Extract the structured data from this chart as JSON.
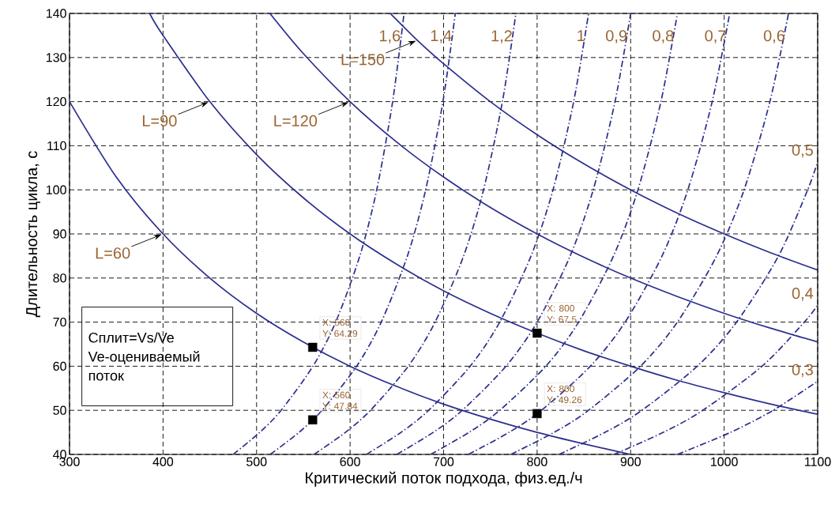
{
  "chart_data": {
    "type": "line",
    "xlabel": "Критический поток подхода, физ.ед./ч",
    "ylabel": "Длительность цикла, с",
    "xlim": [
      300,
      1100
    ],
    "ylim": [
      40,
      140
    ],
    "xticks": [
      300,
      400,
      500,
      600,
      700,
      800,
      900,
      1000,
      1100
    ],
    "yticks": [
      40,
      50,
      60,
      70,
      80,
      90,
      100,
      110,
      120,
      130,
      140
    ],
    "grid": true,
    "marker": "none",
    "annotations": [
      "Сплит=Vs/Ve",
      "Ve-оцениваемый поток"
    ],
    "series": [
      {
        "name": "L=60",
        "color": "#2b2f8c",
        "line_style": "solid",
        "x": [
          300,
          350,
          400,
          450,
          500,
          550,
          600,
          650,
          700,
          750,
          800,
          850,
          900
        ],
        "values": [
          120,
          102.9,
          90,
          80,
          72,
          65.5,
          60,
          55.4,
          51.4,
          48,
          45,
          42.4,
          40
        ]
      },
      {
        "name": "L=90",
        "color": "#2b2f8c",
        "line_style": "solid",
        "x": [
          385.7,
          400,
          450,
          500,
          550,
          600,
          650,
          700,
          750,
          800,
          850,
          900,
          950,
          1000,
          1050,
          1100
        ],
        "values": [
          140,
          135,
          120,
          108,
          98.2,
          90,
          83.1,
          77.1,
          72,
          67.5,
          63.5,
          60,
          56.8,
          54,
          51.4,
          49.1
        ]
      },
      {
        "name": "L=120",
        "color": "#2b2f8c",
        "line_style": "solid",
        "x": [
          514.3,
          550,
          600,
          650,
          700,
          750,
          800,
          850,
          900,
          950,
          1000,
          1050,
          1100
        ],
        "values": [
          140,
          130.9,
          120,
          110.8,
          102.9,
          96,
          90,
          84.7,
          80,
          75.8,
          72,
          68.6,
          65.5
        ]
      },
      {
        "name": "L=150",
        "color": "#2b2f8c",
        "line_style": "solid",
        "x": [
          642.9,
          650,
          672,
          700,
          750,
          800,
          850,
          900,
          950,
          1000,
          1050,
          1100
        ],
        "values": [
          140,
          138.5,
          133.9,
          128.6,
          120,
          112.5,
          105.9,
          100,
          94.7,
          90,
          85.7,
          81.8
        ]
      },
      {
        "name": "1,6",
        "color": "#2b2f8c",
        "line_style": "dashdot",
        "x": [
          475.0,
          503.4,
          526.2,
          560.3,
          584.6,
          610.4,
          628.5,
          645.5,
          657.7
        ],
        "values": [
          40,
          45,
          50,
          60,
          70,
          85,
          100,
          120,
          140
        ]
      },
      {
        "name": "1,4",
        "color": "#2b2f8c",
        "line_style": "dashdot",
        "x": [
          514.6,
          545.4,
          570.0,
          607.0,
          633.3,
          661.3,
          680.8,
          699.3,
          712.5
        ],
        "values": [
          40,
          45,
          50,
          60,
          70,
          85,
          100,
          120,
          140
        ]
      },
      {
        "name": "1,2",
        "color": "#2b2f8c",
        "line_style": "dashdot",
        "x": [
          561.4,
          595.0,
          621.8,
          662.2,
          690.9,
          721.4,
          742.7,
          762.9,
          777.3
        ],
        "values": [
          40,
          45,
          50,
          60,
          70,
          85,
          100,
          120,
          140
        ]
      },
      {
        "name": "1",
        "color": "#2b2f8c",
        "line_style": "dashdot",
        "x": [
          617.5,
          654.5,
          684.0,
          728.4,
          760.0,
          793.5,
          817.0,
          839.1,
          855.0
        ],
        "values": [
          40,
          45,
          50,
          60,
          70,
          85,
          100,
          120,
          140
        ]
      },
      {
        "name": "0,9",
        "color": "#2b2f8c",
        "line_style": "dashdot",
        "x": [
          650.0,
          688.9,
          720.0,
          766.7,
          800.0,
          835.3,
          860.0,
          883.3,
          900.0
        ],
        "values": [
          40,
          45,
          50,
          60,
          70,
          85,
          100,
          120,
          140
        ]
      },
      {
        "name": "0,8",
        "color": "#2b2f8c",
        "line_style": "dashdot",
        "x": [
          686.1,
          727.2,
          760.0,
          809.3,
          844.4,
          881.7,
          907.8,
          932.4,
          950.0
        ],
        "values": [
          40,
          45,
          50,
          60,
          70,
          85,
          100,
          120,
          140
        ]
      },
      {
        "name": "0,7",
        "color": "#2b2f8c",
        "line_style": "dashdot",
        "x": [
          726.5,
          770.0,
          804.7,
          856.9,
          894.1,
          933.6,
          961.2,
          987.2,
          1005.9
        ],
        "values": [
          40,
          45,
          50,
          60,
          70,
          85,
          100,
          120,
          140
        ]
      },
      {
        "name": "0,6",
        "color": "#2b2f8c",
        "line_style": "dashdot",
        "x": [
          771.9,
          818.1,
          855.0,
          910.5,
          950.0,
          991.9,
          1021.3,
          1048.9,
          1068.8
        ],
        "values": [
          40,
          45,
          50,
          60,
          70,
          85,
          100,
          120,
          140
        ]
      },
      {
        "name": "0,5",
        "color": "#2b2f8c",
        "line_style": "dashdot",
        "x": [
          823.3,
          872.6,
          912.0,
          971.2,
          1013.3,
          1058.1,
          1089.3,
          1100
        ],
        "values": [
          40,
          45,
          50,
          60,
          70,
          85,
          100,
          106.4
        ]
      },
      {
        "name": "0,4",
        "color": "#2b2f8c",
        "line_style": "dashdot",
        "x": [
          882.1,
          934.9,
          977.1,
          1040.5,
          1085.7,
          1100
        ],
        "values": [
          40,
          45,
          50,
          60,
          70,
          73.9
        ]
      },
      {
        "name": "0,3",
        "color": "#2b2f8c",
        "line_style": "dashdot",
        "x": [
          950.0,
          1006.8,
          1052.3,
          1100
        ],
        "values": [
          40,
          45,
          50,
          56.6
        ]
      },
      {
        "type": "scatter",
        "marker": "square",
        "color": "#000000",
        "x": [
          560,
          560,
          800,
          800
        ],
        "values": [
          64.29,
          47.84,
          67.5,
          49.26
        ],
        "value_labels": [
          "X: 560 Y: 64.29",
          "X: 560 Y: 47.84",
          "X: 800 Y: 67.5",
          "X: 800 Y: 49.26"
        ]
      }
    ]
  }
}
